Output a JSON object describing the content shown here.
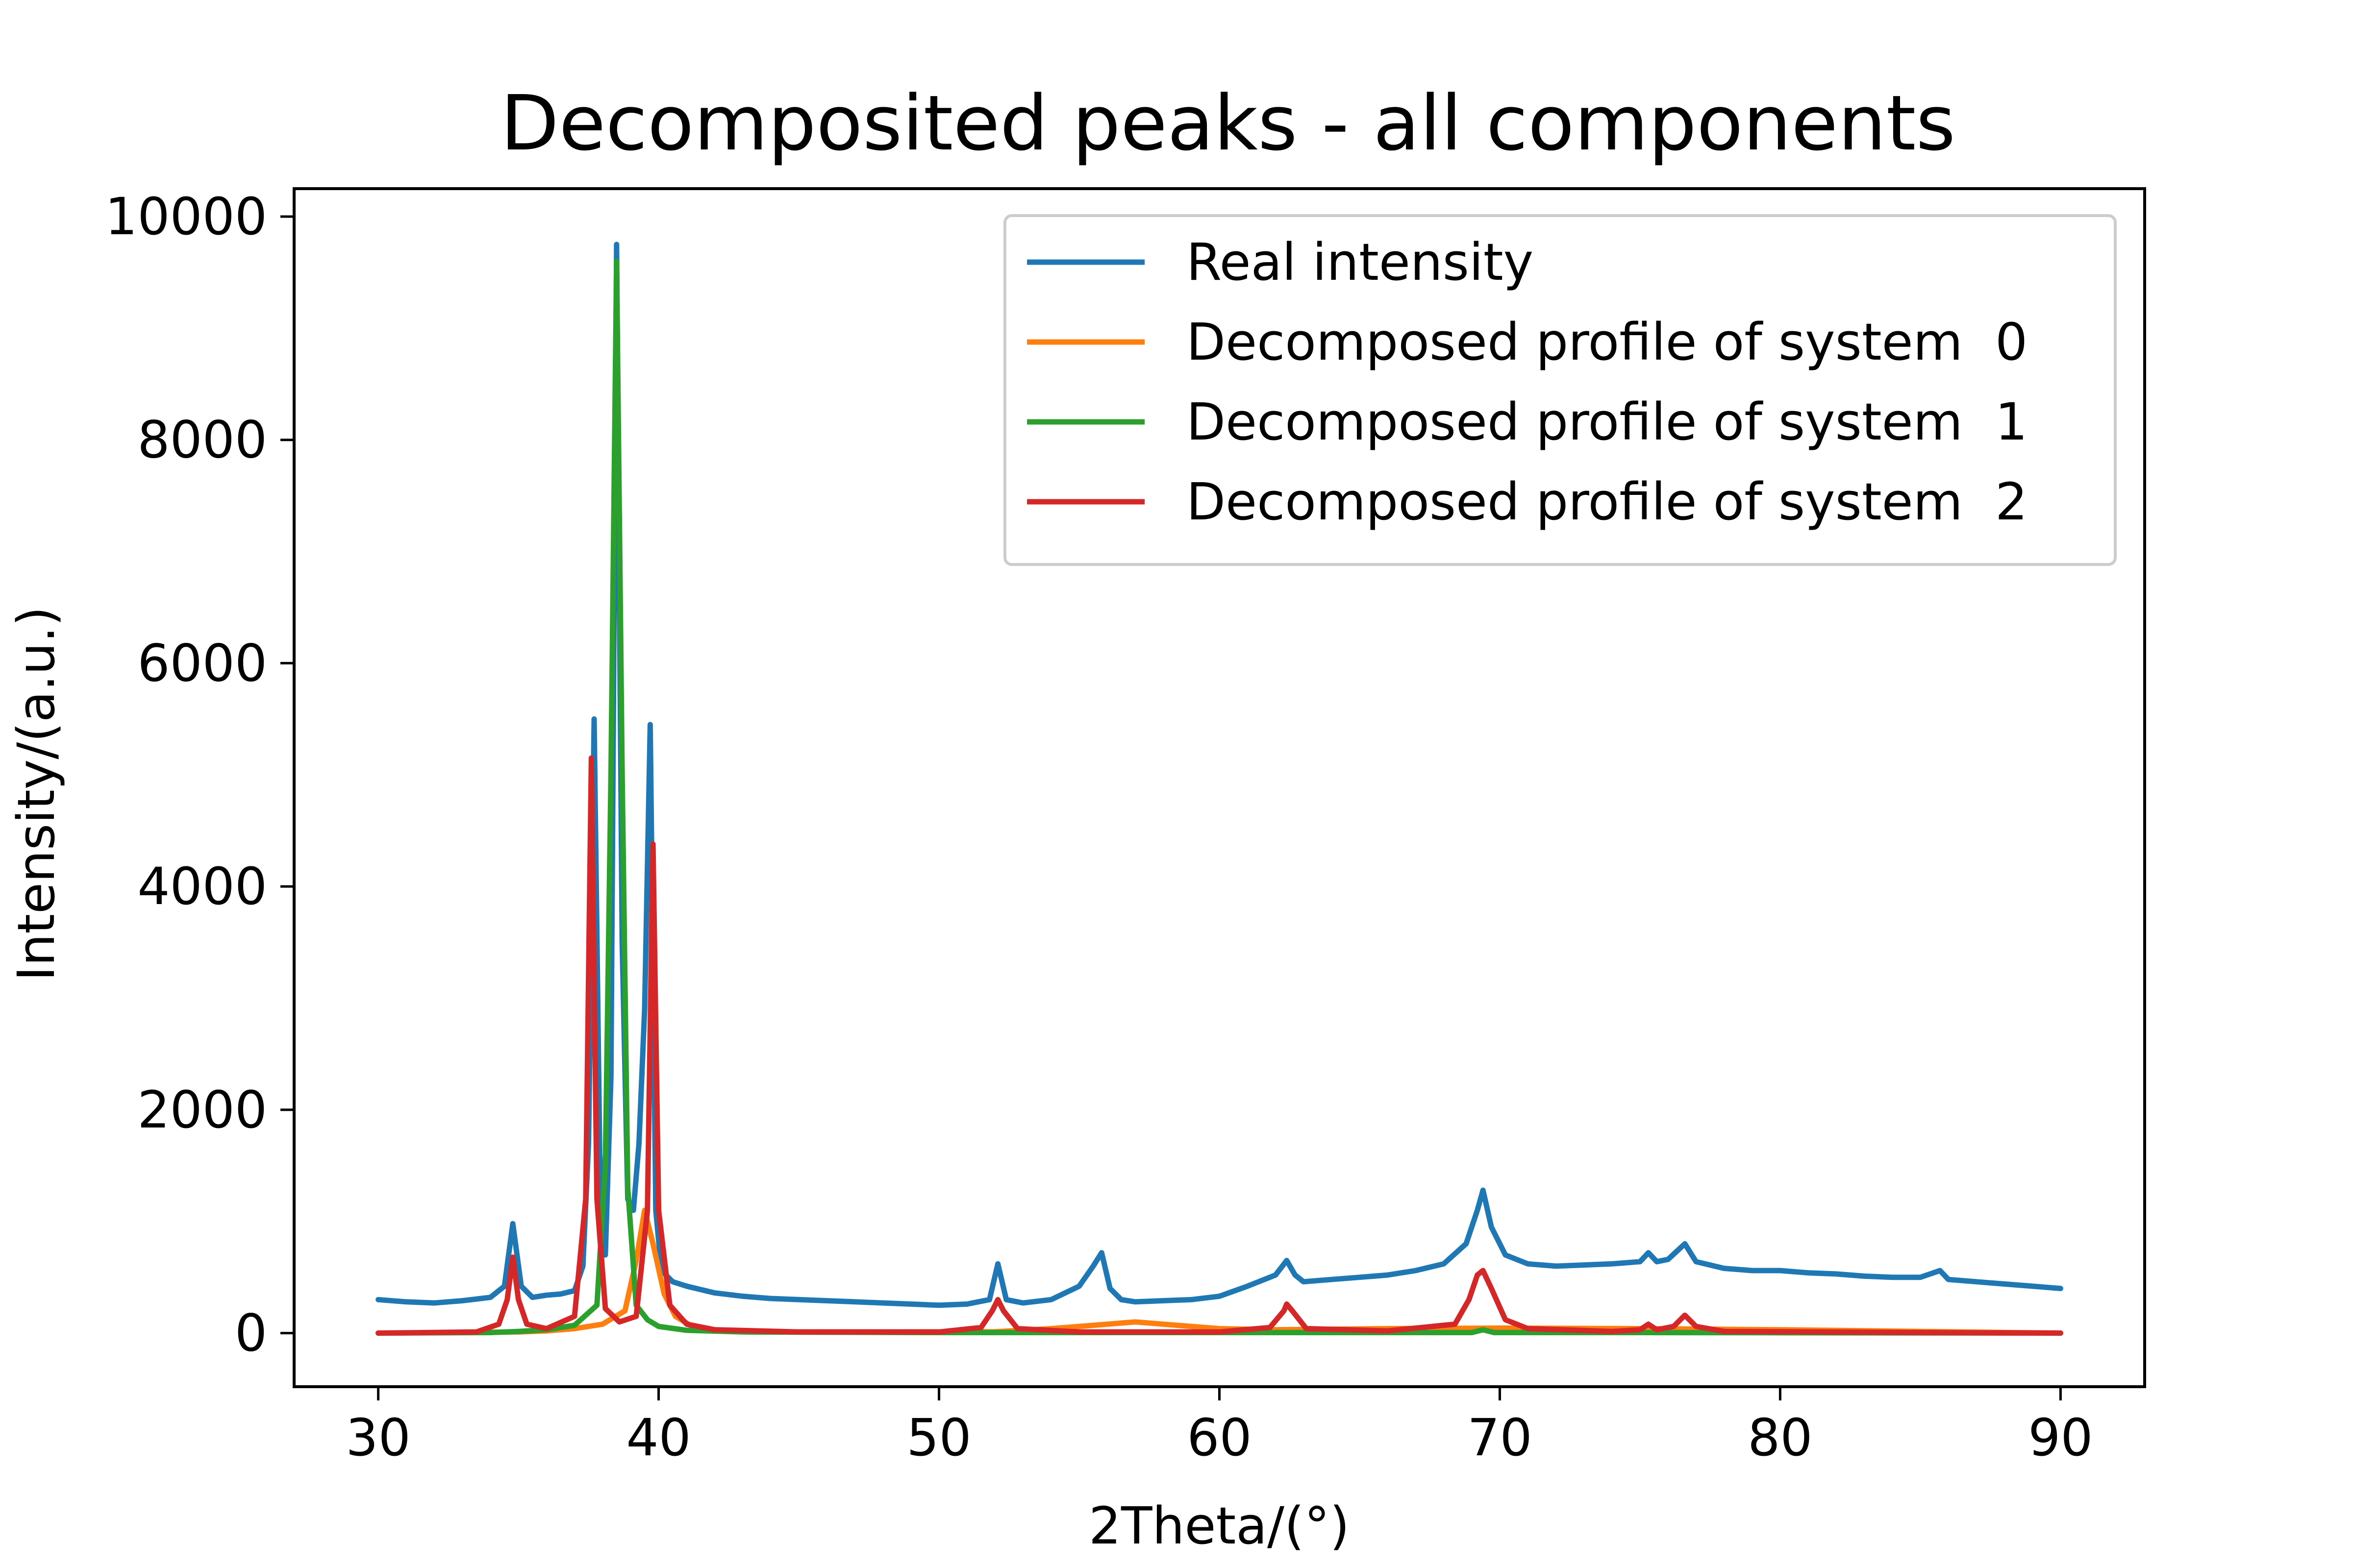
{
  "chart_data": {
    "type": "line",
    "title": "Decomposited peaks - all components",
    "xlabel": "2Theta/(°)",
    "ylabel": "Intensity/(a.u.)",
    "xlim": [
      27,
      93
    ],
    "ylim": [
      -480,
      10250
    ],
    "xticks": [
      30,
      40,
      50,
      60,
      70,
      80,
      90
    ],
    "yticks": [
      0,
      2000,
      4000,
      6000,
      8000,
      10000
    ],
    "legend": {
      "placement": "upper-right"
    },
    "grid": false,
    "series": [
      {
        "name": "Real intensity",
        "color": "#1f77b4",
        "x": [
          30,
          31,
          32,
          33,
          34,
          34.5,
          34.8,
          35.1,
          35.5,
          36,
          36.5,
          37,
          37.3,
          37.5,
          37.7,
          37.9,
          38.1,
          38.3,
          38.5,
          38.7,
          38.9,
          39.1,
          39.3,
          39.5,
          39.7,
          39.9,
          40.1,
          40.5,
          41,
          42,
          43,
          44,
          45,
          46,
          47,
          48,
          49,
          50,
          51,
          51.8,
          52.1,
          52.4,
          53,
          54,
          55,
          55.5,
          55.8,
          56.1,
          56.5,
          57,
          58,
          59,
          60,
          61,
          62,
          62.4,
          62.7,
          63,
          64,
          65,
          66,
          67,
          68,
          68.8,
          69.2,
          69.4,
          69.7,
          70.2,
          71,
          72,
          73,
          74,
          75,
          75.3,
          75.6,
          76,
          76.6,
          77,
          78,
          79,
          80,
          81,
          82,
          83,
          84,
          85,
          85.7,
          86,
          87,
          88,
          89,
          90
        ],
        "y": [
          300,
          280,
          270,
          290,
          320,
          420,
          980,
          420,
          320,
          340,
          350,
          380,
          600,
          1700,
          5500,
          1600,
          700,
          2300,
          9750,
          3500,
          1200,
          1100,
          1700,
          2900,
          5450,
          1100,
          560,
          460,
          420,
          360,
          330,
          310,
          300,
          290,
          280,
          270,
          260,
          250,
          260,
          300,
          620,
          300,
          270,
          300,
          420,
          600,
          720,
          400,
          300,
          280,
          290,
          300,
          330,
          420,
          520,
          650,
          520,
          460,
          480,
          500,
          520,
          560,
          620,
          800,
          1100,
          1280,
          950,
          700,
          620,
          600,
          610,
          620,
          640,
          720,
          640,
          660,
          800,
          640,
          580,
          560,
          560,
          540,
          530,
          510,
          500,
          500,
          560,
          480,
          460,
          440,
          420,
          400
        ]
      },
      {
        "name": "Decomposed profile of system  0",
        "color": "#ff7f0e",
        "x": [
          30,
          35,
          36,
          37,
          38,
          38.8,
          39.2,
          39.5,
          39.8,
          40.2,
          40.6,
          41.2,
          42,
          44,
          48,
          52,
          54,
          55.5,
          57,
          58.5,
          60,
          62,
          66,
          70,
          75,
          80,
          85,
          90
        ],
        "y": [
          0,
          10,
          20,
          40,
          80,
          200,
          650,
          1100,
          800,
          350,
          150,
          60,
          25,
          10,
          10,
          12,
          40,
          70,
          100,
          70,
          40,
          30,
          40,
          45,
          40,
          30,
          15,
          0
        ]
      },
      {
        "name": "Decomposed profile of system  1",
        "color": "#2ca02c",
        "x": [
          30,
          34,
          35,
          36,
          37,
          37.8,
          38.1,
          38.3,
          38.5,
          38.7,
          38.9,
          39.2,
          39.6,
          40,
          41,
          43,
          50,
          60,
          69,
          69.4,
          69.8,
          75,
          80,
          90
        ],
        "y": [
          0,
          5,
          15,
          30,
          70,
          250,
          1500,
          5000,
          9600,
          5000,
          1300,
          250,
          120,
          60,
          25,
          10,
          5,
          5,
          5,
          30,
          5,
          5,
          3,
          0
        ]
      },
      {
        "name": "Decomposed profile of system  2",
        "color": "#d62728",
        "x": [
          30,
          33.5,
          34.3,
          34.6,
          34.8,
          35.0,
          35.3,
          36,
          37,
          37.4,
          37.6,
          37.8,
          38.1,
          38.6,
          39.2,
          39.6,
          39.8,
          40.0,
          40.4,
          41,
          42,
          45,
          50,
          51.5,
          51.9,
          52.1,
          52.3,
          52.8,
          55,
          60,
          61.8,
          62.3,
          62.4,
          62.6,
          63.1,
          66,
          68.4,
          68.9,
          69.2,
          69.4,
          69.7,
          70.2,
          71,
          74,
          75,
          75.3,
          75.6,
          76.2,
          76.6,
          77,
          78,
          85,
          90
        ],
        "y": [
          0,
          10,
          80,
          300,
          680,
          300,
          80,
          40,
          150,
          1200,
          5150,
          1200,
          220,
          100,
          150,
          1100,
          4380,
          1100,
          250,
          80,
          30,
          10,
          10,
          50,
          200,
          300,
          200,
          40,
          10,
          10,
          50,
          200,
          260,
          200,
          40,
          20,
          80,
          300,
          520,
          560,
          400,
          120,
          40,
          15,
          30,
          80,
          30,
          60,
          160,
          60,
          15,
          5,
          0
        ]
      }
    ]
  }
}
